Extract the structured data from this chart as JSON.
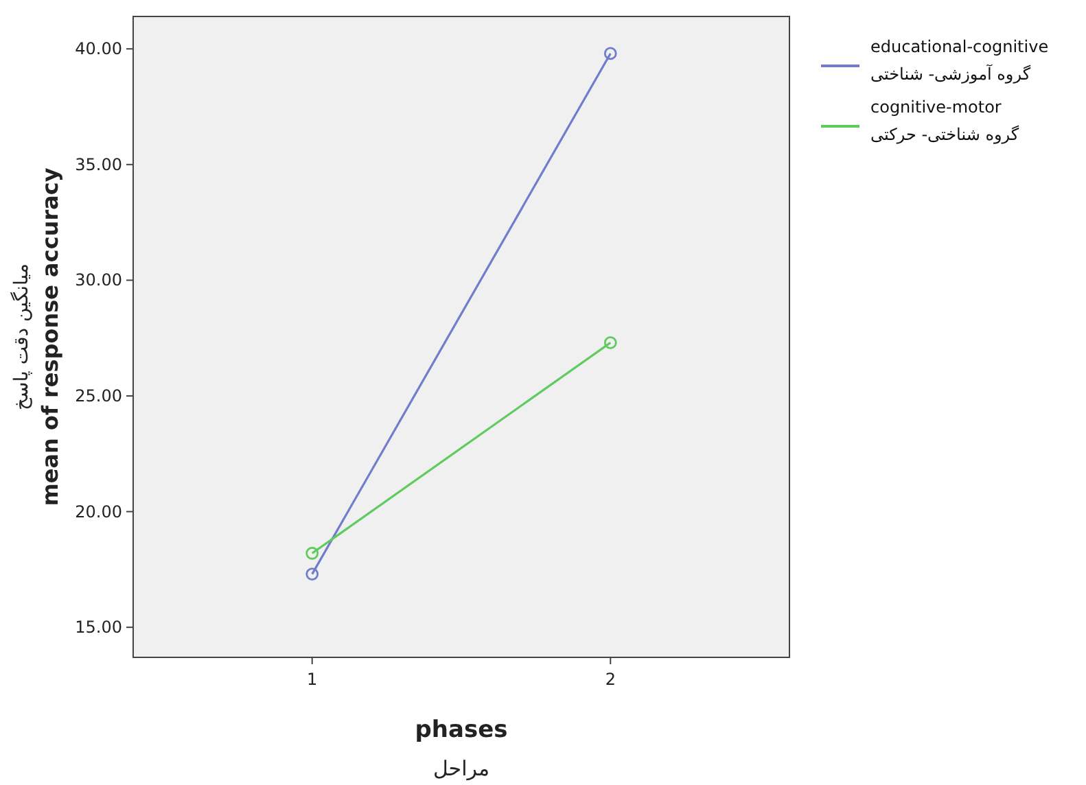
{
  "chart_data": {
    "type": "line",
    "xlabel": "phases\nمراحل",
    "ylabel": "میانگین دقت پاسخ\nmean of response accuracy",
    "categories": [
      "1",
      "2"
    ],
    "series": [
      {
        "name": "educational-cognitive\nگروه آموزشی- شناختی",
        "color": "#6f7dcb",
        "values": [
          17.3,
          39.8
        ]
      },
      {
        "name": "cognitive-motor\nگروه شناختی- حرکتی",
        "color": "#5fcb5f",
        "values": [
          18.2,
          27.3
        ]
      }
    ],
    "ylim": [
      13.7,
      41.4
    ],
    "yticks": [
      {
        "value": 15,
        "label": "15.00"
      },
      {
        "value": 20,
        "label": "20.00"
      },
      {
        "value": 25,
        "label": "25.00"
      },
      {
        "value": 30,
        "label": "30.00"
      },
      {
        "value": 35,
        "label": "35.00"
      },
      {
        "value": 40,
        "label": "40.00"
      }
    ],
    "marker": "circle",
    "grid": false,
    "legend": "right"
  }
}
